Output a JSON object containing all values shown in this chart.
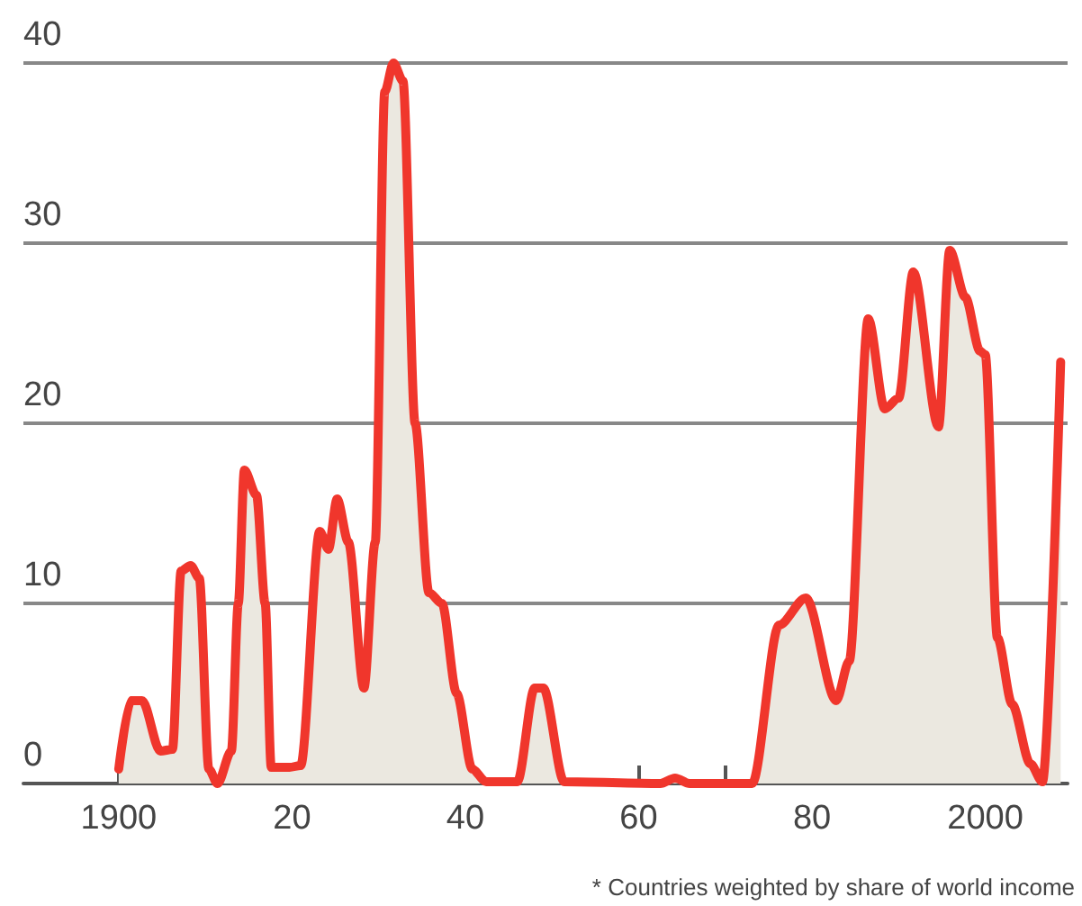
{
  "chart_data": {
    "type": "area",
    "color": "#f0362c",
    "x": [
      1900,
      1901.4,
      1902.7,
      1904.8,
      1906.2,
      1907.2,
      1908.3,
      1909.3,
      1910.4,
      1911.4,
      1913,
      1913.8,
      1914.5,
      1915.9,
      1916.9,
      1917.6,
      1919.7,
      1921,
      1923.2,
      1924.2,
      1925.2,
      1926.5,
      1928.3,
      1929.6,
      1930.7,
      1931.7,
      1932.8,
      1934.2,
      1935.8,
      1937.3,
      1939,
      1940.8,
      1942.4,
      1946,
      1948,
      1949,
      1951.4,
      1962.5,
      1964.2,
      1965.9,
      1973.1,
      1976.2,
      1979.3,
      1982.8,
      1984.3,
      1986.5,
      1988.4,
      1990,
      1991.7,
      1994.6,
      1995.9,
      1997.7,
      1999.4,
      2000,
      2001.4,
      2003.1,
      2005.2,
      2006.6,
      2008.7
    ],
    "values": [
      0.8,
      4.6,
      4.6,
      1.8,
      1.9,
      11.8,
      12.1,
      11.4,
      0.8,
      0,
      1.8,
      10,
      17.4,
      16,
      10,
      0.9,
      0.9,
      1,
      14,
      13,
      15.8,
      13.4,
      5.3,
      13.4,
      38.4,
      40,
      39,
      20,
      10.6,
      10,
      5,
      0.8,
      0.1,
      0.1,
      5.3,
      5.3,
      0.1,
      0,
      0.3,
      0,
      0,
      8.8,
      10.3,
      4.6,
      6.8,
      25.8,
      20.8,
      21.4,
      28.4,
      19.8,
      29.6,
      27,
      24,
      23.8,
      8.1,
      4.4,
      1.1,
      0.1,
      23.4
    ],
    "xlim": [
      1889,
      2009.5
    ],
    "xticks": [
      {
        "value": 1900,
        "label": "1900"
      },
      {
        "value": 1910,
        "label": null
      },
      {
        "value": 1920,
        "label": "20"
      },
      {
        "value": 1930,
        "label": null
      },
      {
        "value": 1940,
        "label": "40"
      },
      {
        "value": 1950,
        "label": null
      },
      {
        "value": 1960,
        "label": "60"
      },
      {
        "value": 1970,
        "label": null
      },
      {
        "value": 1980,
        "label": "80"
      },
      {
        "value": 1990,
        "label": null
      },
      {
        "value": 2000,
        "label": "2000"
      }
    ],
    "ylim": [
      0,
      40
    ],
    "yticks": [
      0,
      10,
      20,
      30,
      40
    ],
    "grid": "y",
    "marker": "none",
    "line_style": "solid",
    "annotations": [
      "* Countries weighted by share of world income"
    ]
  }
}
